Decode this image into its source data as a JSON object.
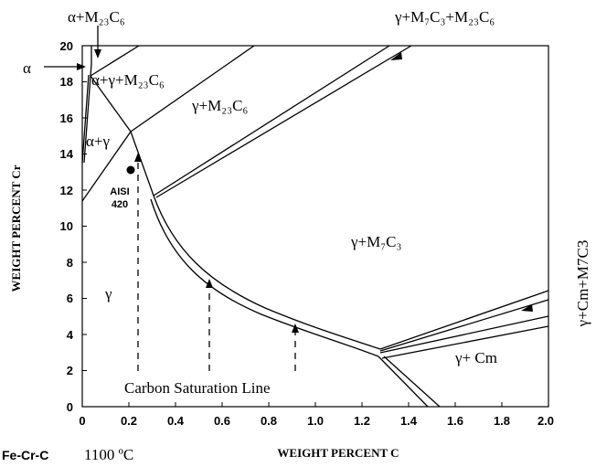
{
  "title_system": "Fe-Cr-C",
  "title_temp": "1100 ºC",
  "x_axis": {
    "label": "WEIGHT PERCENT  C",
    "ticks": [
      "0",
      "0.2",
      "0.4",
      "0.6",
      "0.8",
      "1.0",
      "1.2",
      "1.4",
      "1.6",
      "1.8",
      "2.0"
    ]
  },
  "y_axis": {
    "label": "WEIGHT PERCENT Cr",
    "ticks": [
      "0",
      "2",
      "4",
      "6",
      "8",
      "10",
      "12",
      "14",
      "16",
      "18",
      "20"
    ]
  },
  "regions": {
    "alpha_m23c6": "α+M₂₃C₆",
    "alpha": "α",
    "alpha_gamma_m23c6": "α+γ+M₂₃C₆",
    "gamma_m23c6": "γ+M₂₃C₆",
    "gamma_m7c3_m23c6": "γ+M₇C₃+M₂₃C₆",
    "alpha_gamma": "α+γ",
    "gamma": "γ",
    "gamma_m7c3": "γ+M₇C₃",
    "gamma_cm": "γ+ Cm",
    "gamma_cm_m7c3": "γ+Cm+M7C3"
  },
  "annotations": {
    "aisi_line1": "AISI",
    "aisi_line2": "420",
    "carbon_saturation": "Carbon Saturation Line"
  },
  "chart_data": {
    "type": "phase-diagram",
    "xlim": [
      0,
      2.0
    ],
    "ylim": [
      0,
      20
    ],
    "point_aisi_420": {
      "x": 0.21,
      "y": 13.2
    }
  }
}
